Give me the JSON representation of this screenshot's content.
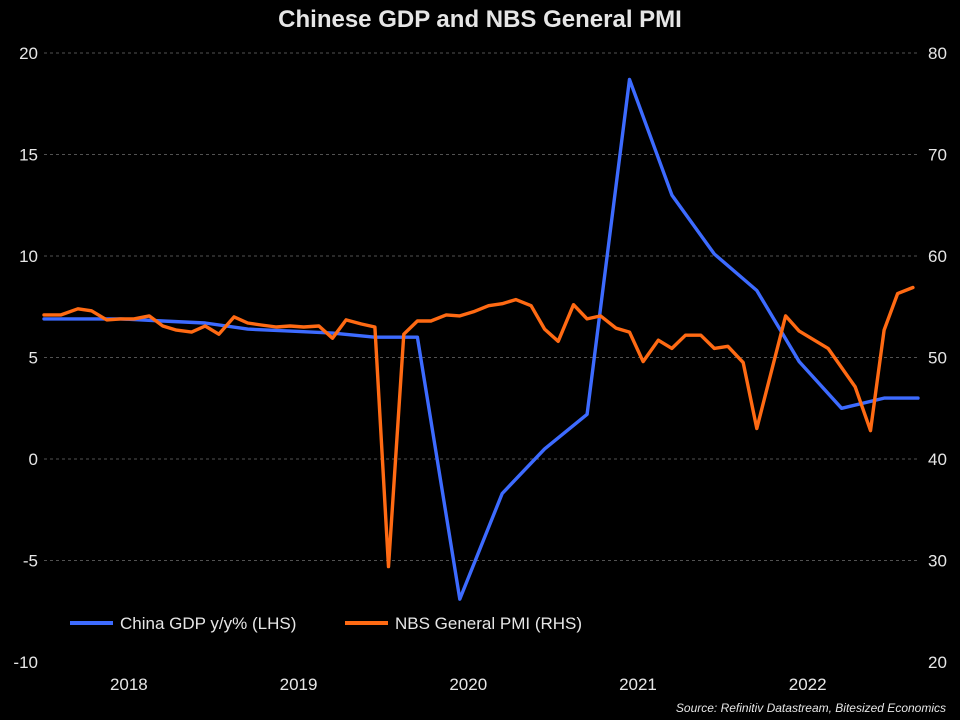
{
  "chart_data": {
    "type": "line",
    "title": "Chinese GDP and NBS General PMI",
    "source": "Source: Refinitiv Datastream, Bitesized Economics",
    "x_labels": [
      {
        "t": 2018.3,
        "label": "2018"
      },
      {
        "t": 2019.3,
        "label": "2019"
      },
      {
        "t": 2020.3,
        "label": "2020"
      },
      {
        "t": 2021.3,
        "label": "2021"
      },
      {
        "t": 2022.3,
        "label": "2022"
      }
    ],
    "x_range": [
      2017.8,
      2022.95
    ],
    "y_left": {
      "range": [
        -10,
        20
      ],
      "ticks": [
        "20",
        "15",
        "10",
        "5",
        "0",
        "-5",
        "-10"
      ]
    },
    "y_right": {
      "range": [
        20,
        80
      ],
      "ticks": [
        "80",
        "70",
        "60",
        "50",
        "40",
        "30",
        "20"
      ]
    },
    "grid": true,
    "legend_position": "bottom-left",
    "colors": {
      "gdp": "#3d6bff",
      "pmi": "#ff6a13",
      "text": "#e6e6e6",
      "grid": "#6e6e6e"
    },
    "series": [
      {
        "key": "gdp",
        "name": "China GDP y/y% (LHS)",
        "axis": "left",
        "points": [
          [
            2017.8,
            6.9
          ],
          [
            2018.25,
            6.9
          ],
          [
            2018.5,
            6.8
          ],
          [
            2018.75,
            6.7
          ],
          [
            2019.0,
            6.4
          ],
          [
            2019.25,
            6.3
          ],
          [
            2019.5,
            6.2
          ],
          [
            2019.75,
            6.0
          ],
          [
            2020.0,
            6.0
          ],
          [
            2020.25,
            -6.9
          ],
          [
            2020.5,
            -1.7
          ],
          [
            2020.75,
            0.5
          ],
          [
            2021.0,
            2.2
          ],
          [
            2021.25,
            18.7
          ],
          [
            2021.5,
            13.0
          ],
          [
            2021.75,
            10.1
          ],
          [
            2022.0,
            8.3
          ],
          [
            2022.25,
            4.8
          ],
          [
            2022.5,
            2.5
          ],
          [
            2022.75,
            3.0
          ],
          [
            2022.95,
            3.0
          ]
        ]
      },
      {
        "key": "pmi",
        "name": "NBS General PMI (RHS)",
        "axis": "right",
        "points": [
          [
            2017.8,
            54.2
          ],
          [
            2017.9,
            54.2
          ],
          [
            2018.0,
            54.8
          ],
          [
            2018.08,
            54.6
          ],
          [
            2018.17,
            53.7
          ],
          [
            2018.25,
            53.8
          ],
          [
            2018.33,
            53.8
          ],
          [
            2018.42,
            54.1
          ],
          [
            2018.5,
            53.1
          ],
          [
            2018.58,
            52.7
          ],
          [
            2018.67,
            52.5
          ],
          [
            2018.75,
            53.1
          ],
          [
            2018.83,
            52.3
          ],
          [
            2018.92,
            54.0
          ],
          [
            2019.0,
            53.4
          ],
          [
            2019.08,
            53.2
          ],
          [
            2019.17,
            53.0
          ],
          [
            2019.25,
            53.1
          ],
          [
            2019.33,
            53.0
          ],
          [
            2019.42,
            53.1
          ],
          [
            2019.5,
            51.9
          ],
          [
            2019.58,
            53.7
          ],
          [
            2019.67,
            53.3
          ],
          [
            2019.75,
            53.0
          ],
          [
            2019.83,
            29.4
          ],
          [
            2019.92,
            52.3
          ],
          [
            2020.0,
            53.6
          ],
          [
            2020.08,
            53.6
          ],
          [
            2020.17,
            54.2
          ],
          [
            2020.25,
            54.1
          ],
          [
            2020.33,
            54.5
          ],
          [
            2020.42,
            55.1
          ],
          [
            2020.5,
            55.3
          ],
          [
            2020.58,
            55.7
          ],
          [
            2020.67,
            55.1
          ],
          [
            2020.75,
            52.8
          ],
          [
            2020.83,
            51.6
          ],
          [
            2020.92,
            55.2
          ],
          [
            2021.0,
            53.8
          ],
          [
            2021.08,
            54.1
          ],
          [
            2021.17,
            52.9
          ],
          [
            2021.25,
            52.5
          ],
          [
            2021.33,
            49.6
          ],
          [
            2021.42,
            51.7
          ],
          [
            2021.5,
            50.9
          ],
          [
            2021.58,
            52.2
          ],
          [
            2021.67,
            52.2
          ],
          [
            2021.75,
            50.9
          ],
          [
            2021.83,
            51.1
          ],
          [
            2021.92,
            49.5
          ],
          [
            2022.0,
            43.0
          ],
          [
            2022.17,
            54.1
          ],
          [
            2022.25,
            52.6
          ],
          [
            2022.42,
            50.9
          ],
          [
            2022.58,
            47.1
          ],
          [
            2022.67,
            42.8
          ],
          [
            2022.75,
            52.7
          ],
          [
            2022.83,
            56.3
          ],
          [
            2022.92,
            56.9
          ]
        ]
      }
    ]
  }
}
